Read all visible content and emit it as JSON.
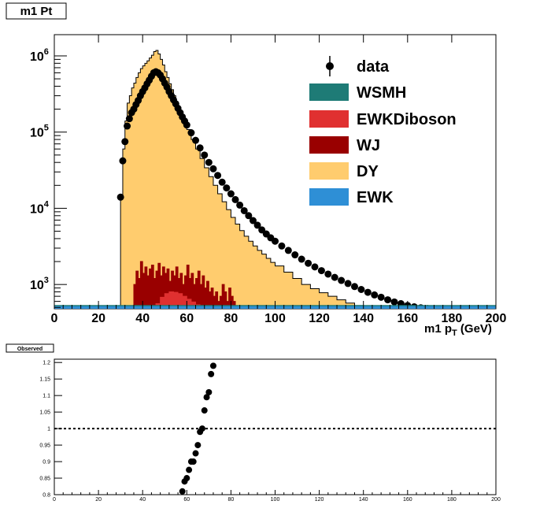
{
  "chart_data": [
    {
      "type": "histogram-stacked",
      "title": "m1 Pt",
      "xlabel": "m1 p",
      "xlabel_subscript": "T",
      "xlabel_unit": " (GeV)",
      "xlim": [
        0,
        200
      ],
      "ylim": [
        480,
        1900000
      ],
      "yscale": "log",
      "x_ticks": [
        0,
        20,
        40,
        60,
        80,
        100,
        120,
        140,
        160,
        180,
        200
      ],
      "y_ticks": [
        {
          "base": "10",
          "exp": "3",
          "value": 1000
        },
        {
          "base": "10",
          "exp": "4",
          "value": 10000
        },
        {
          "base": "10",
          "exp": "5",
          "value": 100000
        },
        {
          "base": "10",
          "exp": "6",
          "value": 1000000
        }
      ],
      "legend_position": "top-right",
      "legend": [
        {
          "name": "data",
          "kind": "marker",
          "color": "#000000"
        },
        {
          "name": "WSMH",
          "kind": "fill",
          "color": "#1e7b76"
        },
        {
          "name": "EWKDiboson",
          "kind": "fill",
          "color": "#e03030"
        },
        {
          "name": "WJ",
          "kind": "fill",
          "color": "#990000"
        },
        {
          "name": "DY",
          "kind": "fill",
          "color": "#ffcc6e"
        },
        {
          "name": "EWK",
          "kind": "fill",
          "color": "#2e8fd6"
        }
      ],
      "series_dy": [
        [
          30,
          14000
        ],
        [
          31,
          60000
        ],
        [
          32,
          140000
        ],
        [
          33,
          240000
        ],
        [
          34,
          300000
        ],
        [
          35,
          380000
        ],
        [
          36,
          440000
        ],
        [
          37,
          520000
        ],
        [
          38,
          600000
        ],
        [
          39,
          680000
        ],
        [
          40,
          740000
        ],
        [
          41,
          800000
        ],
        [
          42,
          860000
        ],
        [
          43,
          940000
        ],
        [
          44,
          1020000
        ],
        [
          45,
          1140000
        ],
        [
          46,
          1180000
        ],
        [
          47,
          1060000
        ],
        [
          48,
          900000
        ],
        [
          49,
          760000
        ],
        [
          50,
          620000
        ],
        [
          51,
          520000
        ],
        [
          52,
          430000
        ],
        [
          53,
          360000
        ],
        [
          54,
          300000
        ],
        [
          55,
          250000
        ],
        [
          56,
          210000
        ],
        [
          57,
          175000
        ],
        [
          58,
          148000
        ],
        [
          59,
          126000
        ],
        [
          60,
          108000
        ],
        [
          62,
          80000
        ],
        [
          64,
          60000
        ],
        [
          66,
          45000
        ],
        [
          68,
          34000
        ],
        [
          70,
          26000
        ],
        [
          72,
          20000
        ],
        [
          74,
          15500
        ],
        [
          76,
          12200
        ],
        [
          78,
          9600
        ],
        [
          80,
          7600
        ],
        [
          82,
          6200
        ],
        [
          84,
          5100
        ],
        [
          86,
          4300
        ],
        [
          88,
          3700
        ],
        [
          90,
          3200
        ],
        [
          92,
          2800
        ],
        [
          94,
          2500
        ],
        [
          96,
          2200
        ],
        [
          98,
          1950
        ],
        [
          100,
          1750
        ],
        [
          104,
          1450
        ],
        [
          108,
          1200
        ],
        [
          112,
          1000
        ],
        [
          116,
          880
        ],
        [
          120,
          780
        ],
        [
          124,
          700
        ],
        [
          128,
          630
        ],
        [
          132,
          570
        ],
        [
          136,
          530
        ],
        [
          140,
          500
        ],
        [
          144,
          480
        ]
      ],
      "series_wj": [
        [
          36,
          1000
        ],
        [
          37,
          1500
        ],
        [
          38,
          1200
        ],
        [
          39,
          2000
        ],
        [
          40,
          1400
        ],
        [
          41,
          1700
        ],
        [
          42,
          1300
        ],
        [
          43,
          1600
        ],
        [
          44,
          1800
        ],
        [
          45,
          1200
        ],
        [
          46,
          1500
        ],
        [
          47,
          1900
        ],
        [
          48,
          1300
        ],
        [
          49,
          1700
        ],
        [
          50,
          1400
        ],
        [
          51,
          1600
        ],
        [
          52,
          1100
        ],
        [
          53,
          1500
        ],
        [
          54,
          1300
        ],
        [
          55,
          1700
        ],
        [
          56,
          1200
        ],
        [
          57,
          1400
        ],
        [
          58,
          1000
        ],
        [
          59,
          1300
        ],
        [
          60,
          1800
        ],
        [
          61,
          1200
        ],
        [
          62,
          1400
        ],
        [
          63,
          1000
        ],
        [
          64,
          1200
        ],
        [
          65,
          1500
        ],
        [
          66,
          1000
        ],
        [
          67,
          1300
        ],
        [
          68,
          900
        ],
        [
          69,
          1100
        ],
        [
          70,
          800
        ],
        [
          71,
          900
        ],
        [
          72,
          700
        ],
        [
          73,
          800
        ],
        [
          74,
          600
        ],
        [
          75,
          700
        ],
        [
          76,
          1000
        ],
        [
          77,
          800
        ],
        [
          78,
          600
        ],
        [
          79,
          900
        ],
        [
          80,
          700
        ],
        [
          81,
          600
        ]
      ],
      "series_ewkdiboson": [
        [
          46,
          560
        ],
        [
          48,
          680
        ],
        [
          50,
          760
        ],
        [
          52,
          800
        ],
        [
          54,
          790
        ],
        [
          56,
          760
        ],
        [
          58,
          700
        ],
        [
          60,
          640
        ],
        [
          62,
          590
        ],
        [
          64,
          540
        ],
        [
          66,
          510
        ]
      ],
      "series_data": [
        [
          30,
          14000
        ],
        [
          31,
          42000
        ],
        [
          32,
          75000
        ],
        [
          33,
          120000
        ],
        [
          34,
          150000
        ],
        [
          35,
          180000
        ],
        [
          36,
          200000
        ],
        [
          37,
          230000
        ],
        [
          38,
          260000
        ],
        [
          39,
          300000
        ],
        [
          40,
          340000
        ],
        [
          41,
          380000
        ],
        [
          42,
          430000
        ],
        [
          43,
          480000
        ],
        [
          44,
          540000
        ],
        [
          45,
          600000
        ],
        [
          46,
          620000
        ],
        [
          47,
          600000
        ],
        [
          48,
          560000
        ],
        [
          49,
          500000
        ],
        [
          50,
          440000
        ],
        [
          51,
          390000
        ],
        [
          52,
          340000
        ],
        [
          53,
          300000
        ],
        [
          54,
          265000
        ],
        [
          55,
          235000
        ],
        [
          56,
          205000
        ],
        [
          57,
          180000
        ],
        [
          58,
          158000
        ],
        [
          59,
          140000
        ],
        [
          60,
          124000
        ],
        [
          62,
          98000
        ],
        [
          64,
          78000
        ],
        [
          66,
          62000
        ],
        [
          68,
          50000
        ],
        [
          70,
          40000
        ],
        [
          72,
          33000
        ],
        [
          74,
          27000
        ],
        [
          76,
          22000
        ],
        [
          78,
          18500
        ],
        [
          80,
          15500
        ],
        [
          82,
          13000
        ],
        [
          84,
          11000
        ],
        [
          86,
          9300
        ],
        [
          88,
          8000
        ],
        [
          90,
          6900
        ],
        [
          92,
          6000
        ],
        [
          94,
          5200
        ],
        [
          96,
          4600
        ],
        [
          98,
          4100
        ],
        [
          100,
          3700
        ],
        [
          103,
          3200
        ],
        [
          106,
          2800
        ],
        [
          109,
          2450
        ],
        [
          112,
          2150
        ],
        [
          115,
          1900
        ],
        [
          118,
          1700
        ],
        [
          121,
          1520
        ],
        [
          124,
          1370
        ],
        [
          127,
          1240
        ],
        [
          130,
          1130
        ],
        [
          133,
          1030
        ],
        [
          136,
          940
        ],
        [
          139,
          860
        ],
        [
          142,
          790
        ],
        [
          145,
          730
        ],
        [
          148,
          680
        ],
        [
          151,
          630
        ],
        [
          154,
          590
        ],
        [
          157,
          560
        ],
        [
          160,
          530
        ],
        [
          163,
          510
        ],
        [
          166,
          495
        ],
        [
          169,
          485
        ],
        [
          172,
          480
        ],
        [
          174,
          478
        ]
      ]
    },
    {
      "type": "scatter",
      "title": "Observed",
      "xlim": [
        0,
        200
      ],
      "ylim": [
        0.8,
        1.21
      ],
      "x_ticks": [
        "0",
        "20",
        "40",
        "60",
        "80",
        "100",
        "120",
        "140",
        "160",
        "180",
        "200"
      ],
      "y_ticks": [
        "0.8",
        "0.85",
        "0.9",
        "0.95",
        "1",
        "1.05",
        "1.1",
        "1.15",
        "1.2"
      ],
      "reference_line_y": 1,
      "points": [
        [
          58,
          0.81
        ],
        [
          59,
          0.84
        ],
        [
          60,
          0.85
        ],
        [
          61,
          0.875
        ],
        [
          62,
          0.9
        ],
        [
          63,
          0.9
        ],
        [
          64,
          0.925
        ],
        [
          65,
          0.95
        ],
        [
          66,
          0.99
        ],
        [
          67,
          1.0
        ],
        [
          68,
          1.055
        ],
        [
          69,
          1.095
        ],
        [
          70,
          1.11
        ],
        [
          71,
          1.165
        ],
        [
          72,
          1.19
        ]
      ]
    }
  ]
}
